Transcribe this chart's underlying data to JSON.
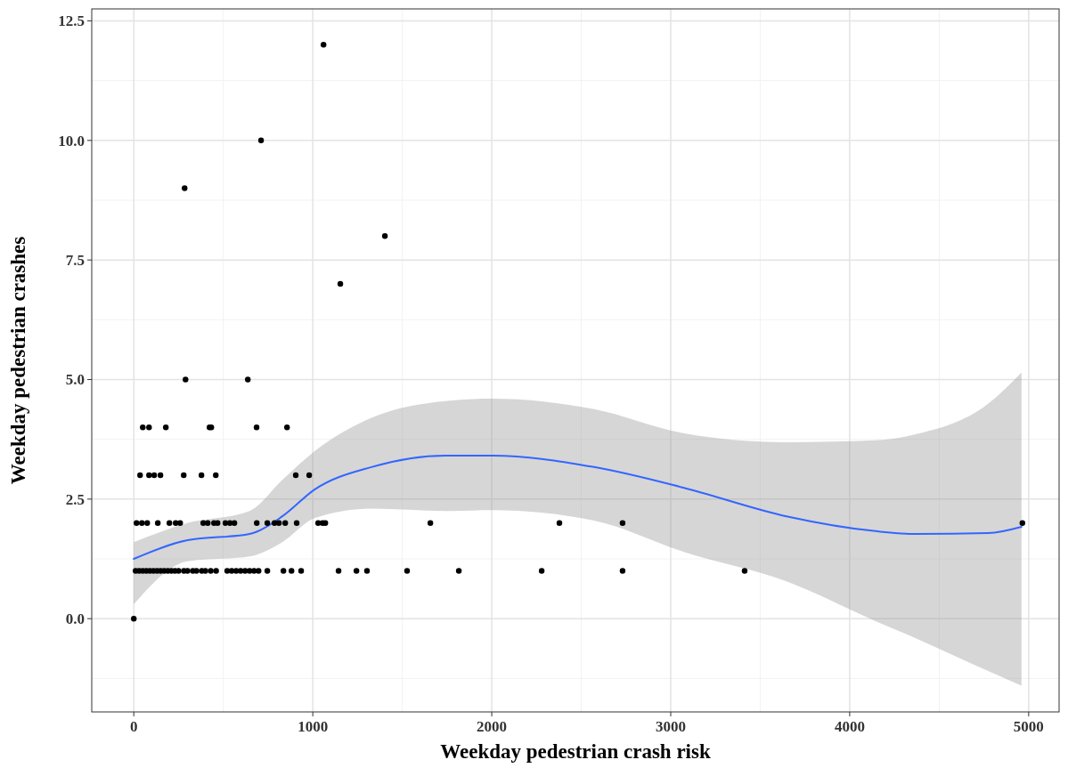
{
  "chart_data": {
    "type": "scatter",
    "xlabel": "Weekday pedestrian crash risk",
    "ylabel": "Weekday pedestrian crashes",
    "xlim": [
      -235,
      5170
    ],
    "ylim": [
      -1.95,
      12.75
    ],
    "xticks": [
      0,
      1000,
      2000,
      3000,
      4000,
      5000
    ],
    "yticks": [
      {
        "value": 0,
        "label": "0.0"
      },
      {
        "value": 2.5,
        "label": "2.5"
      },
      {
        "value": 5,
        "label": "5.0"
      },
      {
        "value": 7.5,
        "label": "7.5"
      },
      {
        "value": 10,
        "label": "10.0"
      },
      {
        "value": 12.5,
        "label": "12.5"
      }
    ],
    "grid": true,
    "marker": "circle",
    "series": [
      {
        "color": "#000000",
        "x": [
          1060,
          711,
          284,
          1403,
          1154,
          289,
          637,
          50,
          85,
          179,
          423,
          433,
          686,
          856,
          35,
          85,
          114,
          149,
          279,
          378,
          458,
          905,
          980,
          15,
          45,
          75,
          134,
          199,
          234,
          259,
          388,
          413,
          448,
          468,
          512,
          537,
          562,
          687,
          746,
          786,
          811,
          846,
          910,
          1030,
          1055,
          1070,
          1657,
          2378,
          2731,
          4965,
          10,
          30,
          50,
          70,
          90,
          110,
          130,
          150,
          170,
          190,
          210,
          230,
          250,
          280,
          300,
          330,
          350,
          380,
          400,
          430,
          460,
          522,
          547,
          572,
          597,
          622,
          647,
          672,
          697,
          746,
          836,
          881,
          935,
          1144,
          1244,
          1303,
          1527,
          1816,
          2279,
          2731,
          3413,
          0
        ],
        "values": [
          12,
          10,
          9,
          8,
          7,
          5,
          5,
          4,
          4,
          4,
          4,
          4,
          4,
          4,
          3,
          3,
          3,
          3,
          3,
          3,
          3,
          3,
          3,
          2,
          2,
          2,
          2,
          2,
          2,
          2,
          2,
          2,
          2,
          2,
          2,
          2,
          2,
          2,
          2,
          2,
          2,
          2,
          2,
          2,
          2,
          2,
          2,
          2,
          2,
          2,
          1,
          1,
          1,
          1,
          1,
          1,
          1,
          1,
          1,
          1,
          1,
          1,
          1,
          1,
          1,
          1,
          1,
          1,
          1,
          1,
          1,
          1,
          1,
          1,
          1,
          1,
          1,
          1,
          1,
          1,
          1,
          1,
          1,
          1,
          1,
          1,
          1,
          1,
          1,
          1,
          1,
          0
        ]
      },
      {
        "type": "line",
        "color": "#3366ff",
        "marker": "none",
        "x": [
          0,
          300,
          647,
          830,
          1010,
          1328,
          1741,
          2005,
          2572,
          3070,
          3647,
          4144,
          4363,
          4776,
          4960
        ],
        "values": [
          1.25,
          1.64,
          1.77,
          2.14,
          2.7,
          3.17,
          3.41,
          3.41,
          3.17,
          2.74,
          2.14,
          1.83,
          1.77,
          1.79,
          1.92
        ],
        "lower": [
          0.3,
          1.2,
          1.3,
          1.6,
          2.1,
          2.3,
          2.25,
          2.27,
          2.05,
          1.4,
          0.78,
          -0.05,
          -0.4,
          -1.1,
          -1.4
        ],
        "upper": [
          1.6,
          2.0,
          2.25,
          2.9,
          3.5,
          4.2,
          4.55,
          4.6,
          4.38,
          3.88,
          3.69,
          3.73,
          3.85,
          4.5,
          5.15
        ]
      }
    ]
  }
}
